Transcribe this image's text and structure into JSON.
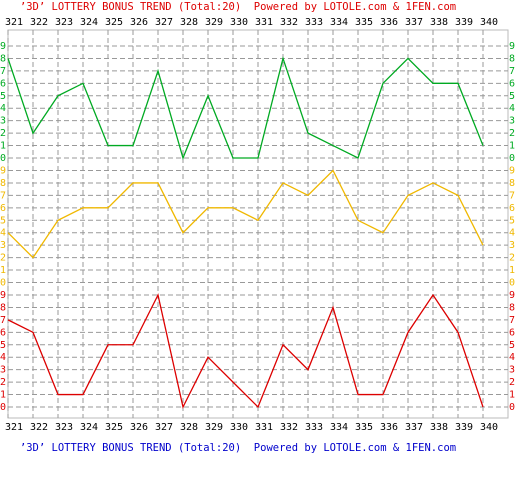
{
  "chart_data": {
    "type": "line",
    "title": "’3D’ LOTTERY BONUS TREND (Total:20)  Powered by LOTOLE.com & 1FEN.com",
    "categories": [
      "321",
      "322",
      "323",
      "324",
      "325",
      "326",
      "327",
      "328",
      "329",
      "330",
      "331",
      "332",
      "333",
      "334",
      "335",
      "336",
      "337",
      "338",
      "339",
      "340"
    ],
    "series": [
      {
        "color": "#00aa22",
        "values": [
          8,
          2,
          5,
          6,
          1,
          1,
          7,
          0,
          5,
          0,
          0,
          8,
          2,
          1,
          0,
          6,
          8,
          6,
          6,
          1
        ]
      },
      {
        "color": "#f0b800",
        "values": [
          4,
          2,
          5,
          6,
          6,
          8,
          8,
          4,
          6,
          6,
          5,
          8,
          7,
          9,
          5,
          4,
          7,
          8,
          7,
          3
        ]
      },
      {
        "color": "#dd0000",
        "values": [
          7,
          6,
          1,
          1,
          5,
          5,
          9,
          0,
          4,
          2,
          0,
          5,
          3,
          8,
          1,
          1,
          6,
          9,
          6,
          0
        ]
      }
    ],
    "ylim": [
      0,
      9
    ],
    "yticks": [
      0,
      1,
      2,
      3,
      4,
      5,
      6,
      7,
      8,
      9
    ],
    "grid": true
  }
}
